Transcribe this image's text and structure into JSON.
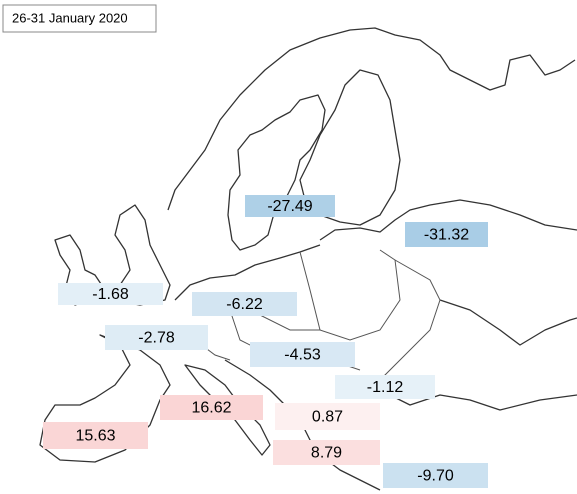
{
  "chart_data": {
    "type": "map",
    "title": "26-31 January 2020",
    "values": [
      -27.49,
      -31.32,
      -1.68,
      -6.22,
      -2.78,
      -4.53,
      -1.12,
      16.62,
      0.87,
      15.63,
      8.79,
      -9.7
    ],
    "value_labels": [
      "-27.49",
      "-31.32",
      "-1.68",
      "-6.22",
      "-2.78",
      "-4.53",
      "-1.12",
      "16.62",
      "0.87",
      "15.63",
      "8.79",
      "-9.70"
    ]
  }
}
